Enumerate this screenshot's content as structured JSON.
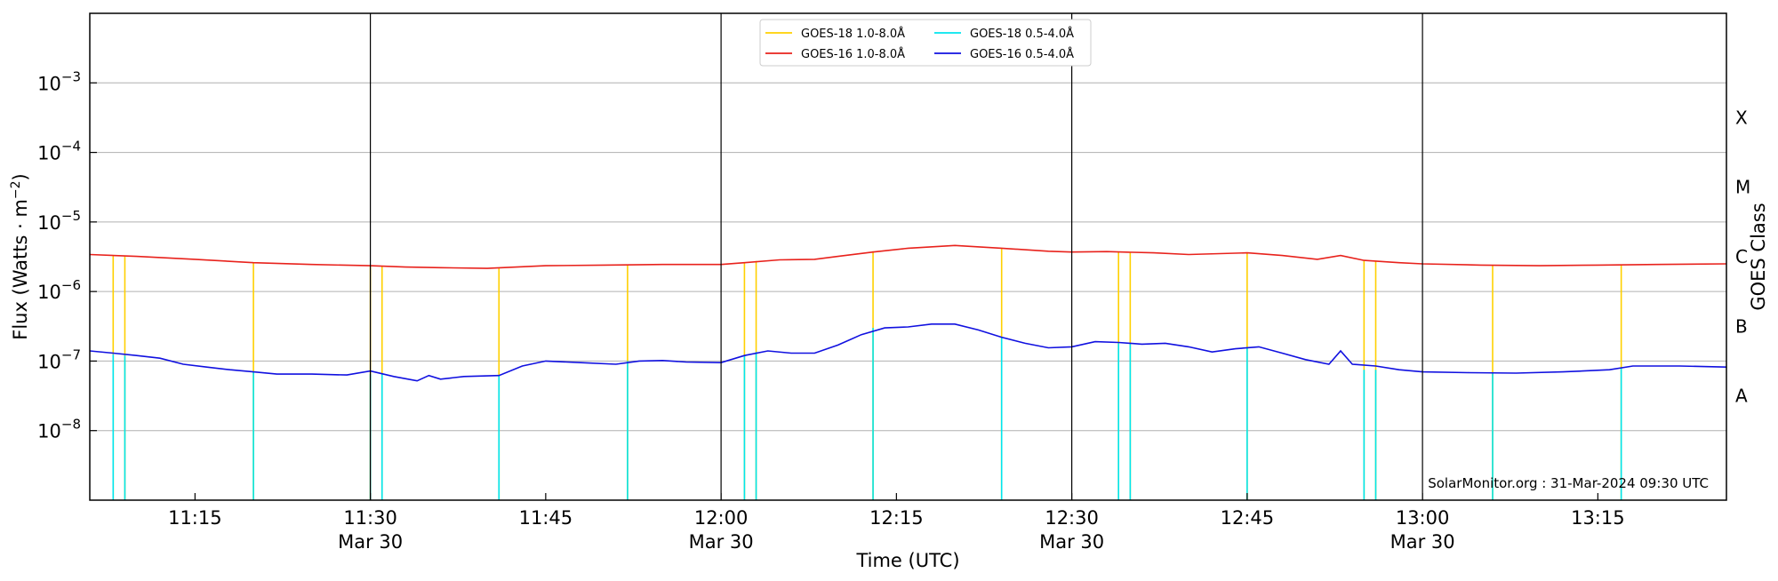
{
  "chart_data": {
    "type": "line",
    "title": "",
    "xlabel": "Time (UTC)",
    "ylabel": "Flux (Watts · m",
    "ylabel_sup": "−2",
    "ylabel_close": ")",
    "ylabel_right": "GOES Class",
    "yscale": "log",
    "x_range": [
      "11:06",
      "13:26"
    ],
    "ylim": [
      1e-09,
      0.01
    ],
    "grid": "horizontal",
    "legend_position": "top-center",
    "x_ticks": [
      {
        "t": "11:15",
        "label": "11:15",
        "sub": ""
      },
      {
        "t": "11:30",
        "label": "11:30",
        "sub": "Mar 30"
      },
      {
        "t": "11:45",
        "label": "11:45",
        "sub": ""
      },
      {
        "t": "12:00",
        "label": "12:00",
        "sub": "Mar 30"
      },
      {
        "t": "12:15",
        "label": "12:15",
        "sub": ""
      },
      {
        "t": "12:30",
        "label": "12:30",
        "sub": "Mar 30"
      },
      {
        "t": "12:45",
        "label": "12:45",
        "sub": ""
      },
      {
        "t": "13:00",
        "label": "13:00",
        "sub": "Mar 30"
      },
      {
        "t": "13:15",
        "label": "13:15",
        "sub": ""
      }
    ],
    "y_ticks": [
      {
        "exp": -8,
        "label": "10",
        "sup": "−8"
      },
      {
        "exp": -7,
        "label": "10",
        "sup": "−7"
      },
      {
        "exp": -6,
        "label": "10",
        "sup": "−6"
      },
      {
        "exp": -5,
        "label": "10",
        "sup": "−5"
      },
      {
        "exp": -4,
        "label": "10",
        "sup": "−4"
      },
      {
        "exp": -3,
        "label": "10",
        "sup": "−3"
      }
    ],
    "vertical_markers": [
      "11:30",
      "12:00",
      "12:30",
      "13:00"
    ],
    "goes_classes": [
      {
        "label": "A",
        "exp": -7.5
      },
      {
        "label": "B",
        "exp": -6.5
      },
      {
        "label": "C",
        "exp": -5.5
      },
      {
        "label": "M",
        "exp": -4.5
      },
      {
        "label": "X",
        "exp": -3.5
      }
    ],
    "credit": "SolarMonitor.org : 31-Mar-2024 09:30 UTC",
    "legend": [
      {
        "name": "GOES-18 1.0-8.0Å",
        "color": "#ffd000"
      },
      {
        "name": "GOES-18 0.5-4.0Å",
        "color": "#00e5ee"
      },
      {
        "name": "GOES-16 1.0-8.0Å",
        "color": "#e8221c"
      },
      {
        "name": "GOES-16 0.5-4.0Å",
        "color": "#1010e0"
      }
    ],
    "series": [
      {
        "name": "GOES-16 1.0-8.0Å",
        "color": "#e8221c",
        "points": [
          [
            "11:06",
            3.4e-06
          ],
          [
            "11:10",
            3.2e-06
          ],
          [
            "11:15",
            2.9e-06
          ],
          [
            "11:20",
            2.6e-06
          ],
          [
            "11:25",
            2.45e-06
          ],
          [
            "11:30",
            2.35e-06
          ],
          [
            "11:33",
            2.25e-06
          ],
          [
            "11:36",
            2.2e-06
          ],
          [
            "11:40",
            2.15e-06
          ],
          [
            "11:45",
            2.35e-06
          ],
          [
            "11:50",
            2.4e-06
          ],
          [
            "11:55",
            2.45e-06
          ],
          [
            "12:00",
            2.45e-06
          ],
          [
            "12:02",
            2.6e-06
          ],
          [
            "12:05",
            2.85e-06
          ],
          [
            "12:08",
            2.9e-06
          ],
          [
            "12:10",
            3.2e-06
          ],
          [
            "12:13",
            3.7e-06
          ],
          [
            "12:16",
            4.2e-06
          ],
          [
            "12:20",
            4.6e-06
          ],
          [
            "12:24",
            4.2e-06
          ],
          [
            "12:28",
            3.8e-06
          ],
          [
            "12:30",
            3.7e-06
          ],
          [
            "12:33",
            3.75e-06
          ],
          [
            "12:37",
            3.6e-06
          ],
          [
            "12:40",
            3.4e-06
          ],
          [
            "12:45",
            3.6e-06
          ],
          [
            "12:48",
            3.3e-06
          ],
          [
            "12:51",
            2.9e-06
          ],
          [
            "12:53",
            3.3e-06
          ],
          [
            "12:55",
            2.8e-06
          ],
          [
            "12:58",
            2.6e-06
          ],
          [
            "13:00",
            2.5e-06
          ],
          [
            "13:05",
            2.4e-06
          ],
          [
            "13:10",
            2.35e-06
          ],
          [
            "13:15",
            2.4e-06
          ],
          [
            "13:20",
            2.45e-06
          ],
          [
            "13:26",
            2.5e-06
          ]
        ]
      },
      {
        "name": "GOES-16 0.5-4.0Å",
        "color": "#1010e0",
        "points": [
          [
            "11:06",
            1.4e-07
          ],
          [
            "11:08",
            1.3e-07
          ],
          [
            "11:10",
            1.2e-07
          ],
          [
            "11:12",
            1.1e-07
          ],
          [
            "11:14",
            9e-08
          ],
          [
            "11:16",
            8.2e-08
          ],
          [
            "11:18",
            7.5e-08
          ],
          [
            "11:20",
            7e-08
          ],
          [
            "11:22",
            6.5e-08
          ],
          [
            "11:25",
            6.5e-08
          ],
          [
            "11:28",
            6.3e-08
          ],
          [
            "11:30",
            7.2e-08
          ],
          [
            "11:32",
            6e-08
          ],
          [
            "11:34",
            5.2e-08
          ],
          [
            "11:35",
            6.2e-08
          ],
          [
            "11:36",
            5.5e-08
          ],
          [
            "11:38",
            6e-08
          ],
          [
            "11:41",
            6.2e-08
          ],
          [
            "11:43",
            8.5e-08
          ],
          [
            "11:45",
            1e-07
          ],
          [
            "11:48",
            9.5e-08
          ],
          [
            "11:51",
            9e-08
          ],
          [
            "11:53",
            1e-07
          ],
          [
            "11:55",
            1.02e-07
          ],
          [
            "11:57",
            9.7e-08
          ],
          [
            "12:00",
            9.5e-08
          ],
          [
            "12:02",
            1.2e-07
          ],
          [
            "12:04",
            1.4e-07
          ],
          [
            "12:06",
            1.3e-07
          ],
          [
            "12:08",
            1.3e-07
          ],
          [
            "12:10",
            1.7e-07
          ],
          [
            "12:12",
            2.4e-07
          ],
          [
            "12:14",
            3e-07
          ],
          [
            "12:16",
            3.1e-07
          ],
          [
            "12:18",
            3.4e-07
          ],
          [
            "12:20",
            3.4e-07
          ],
          [
            "12:22",
            2.8e-07
          ],
          [
            "12:24",
            2.2e-07
          ],
          [
            "12:26",
            1.8e-07
          ],
          [
            "12:28",
            1.55e-07
          ],
          [
            "12:30",
            1.6e-07
          ],
          [
            "12:32",
            1.9e-07
          ],
          [
            "12:34",
            1.85e-07
          ],
          [
            "12:36",
            1.75e-07
          ],
          [
            "12:38",
            1.8e-07
          ],
          [
            "12:40",
            1.6e-07
          ],
          [
            "12:42",
            1.35e-07
          ],
          [
            "12:44",
            1.5e-07
          ],
          [
            "12:46",
            1.6e-07
          ],
          [
            "12:48",
            1.3e-07
          ],
          [
            "12:50",
            1.05e-07
          ],
          [
            "12:52",
            9e-08
          ],
          [
            "12:53",
            1.4e-07
          ],
          [
            "12:54",
            9e-08
          ],
          [
            "12:56",
            8.5e-08
          ],
          [
            "12:58",
            7.5e-08
          ],
          [
            "13:00",
            7e-08
          ],
          [
            "13:04",
            6.8e-08
          ],
          [
            "13:08",
            6.7e-08
          ],
          [
            "13:12",
            7e-08
          ],
          [
            "13:16",
            7.5e-08
          ],
          [
            "13:18",
            8.5e-08
          ],
          [
            "13:22",
            8.5e-08
          ],
          [
            "13:26",
            8.2e-08
          ]
        ]
      }
    ],
    "goes18_gaps": [
      {
        "t": "11:08",
        "long": 3.3e-06,
        "short": 1.25e-07
      },
      {
        "t": "11:09",
        "long": 3.2e-06,
        "short": 1.2e-07
      },
      {
        "t": "11:20",
        "long": 2.6e-06,
        "short": 7e-08
      },
      {
        "t": "11:30",
        "long": 2.35e-06,
        "short": 6.5e-08
      },
      {
        "t": "11:31",
        "long": 2.3e-06,
        "short": 6.5e-08
      },
      {
        "t": "11:41",
        "long": 2.15e-06,
        "short": 6.2e-08
      },
      {
        "t": "11:52",
        "long": 2.45e-06,
        "short": 1e-07
      },
      {
        "t": "12:02",
        "long": 2.6e-06,
        "short": 1.2e-07
      },
      {
        "t": "12:03",
        "long": 2.75e-06,
        "short": 1.35e-07
      },
      {
        "t": "12:13",
        "long": 3.8e-06,
        "short": 3e-07
      },
      {
        "t": "12:24",
        "long": 4.2e-06,
        "short": 2.2e-07
      },
      {
        "t": "12:34",
        "long": 3.7e-06,
        "short": 1.8e-07
      },
      {
        "t": "12:35",
        "long": 3.7e-06,
        "short": 1.8e-07
      },
      {
        "t": "12:45",
        "long": 3.6e-06,
        "short": 1.6e-07
      },
      {
        "t": "12:55",
        "long": 2.8e-06,
        "short": 7.5e-08
      },
      {
        "t": "12:56",
        "long": 2.75e-06,
        "short": 7.5e-08
      },
      {
        "t": "13:06",
        "long": 2.4e-06,
        "short": 6.7e-08
      },
      {
        "t": "13:17",
        "long": 2.4e-06,
        "short": 8e-08
      }
    ]
  }
}
